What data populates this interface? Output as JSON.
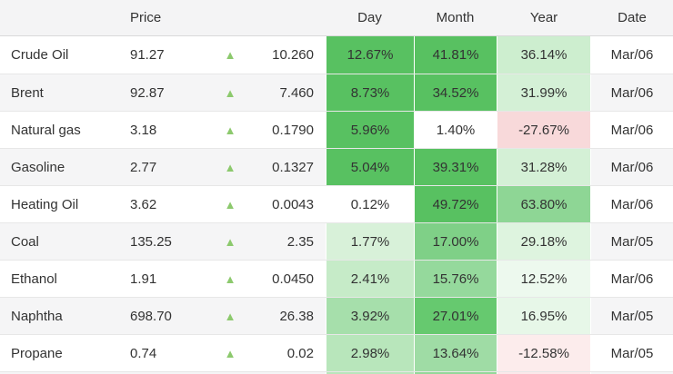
{
  "table": {
    "headers": {
      "name": "",
      "price": "Price",
      "day": "Day",
      "month": "Month",
      "year": "Year",
      "date": "Date"
    },
    "rows": [
      {
        "name": "Crude Oil",
        "price": "91.27",
        "direction": "up",
        "change": "10.260",
        "day": {
          "text": "12.67%",
          "bg": "#58c161"
        },
        "month": {
          "text": "41.81%",
          "bg": "#58c161"
        },
        "year": {
          "text": "36.14%",
          "bg": "#cdeecf"
        },
        "date": "Mar/06"
      },
      {
        "name": "Brent",
        "price": "92.87",
        "direction": "up",
        "change": "7.460",
        "day": {
          "text": "8.73%",
          "bg": "#58c161"
        },
        "month": {
          "text": "34.52%",
          "bg": "#58c161"
        },
        "year": {
          "text": "31.99%",
          "bg": "#d4f0d6"
        },
        "date": "Mar/06"
      },
      {
        "name": "Natural gas",
        "price": "3.18",
        "direction": "up",
        "change": "0.1790",
        "day": {
          "text": "5.96%",
          "bg": "#58c161"
        },
        "month": {
          "text": "1.40%",
          "bg": "#ffffff"
        },
        "year": {
          "text": "-27.67%",
          "bg": "#f8d9da"
        },
        "date": "Mar/06"
      },
      {
        "name": "Gasoline",
        "price": "2.77",
        "direction": "up",
        "change": "0.1327",
        "day": {
          "text": "5.04%",
          "bg": "#58c161"
        },
        "month": {
          "text": "39.31%",
          "bg": "#58c161"
        },
        "year": {
          "text": "31.28%",
          "bg": "#d4f0d6"
        },
        "date": "Mar/06"
      },
      {
        "name": "Heating Oil",
        "price": "3.62",
        "direction": "up",
        "change": "0.0043",
        "day": {
          "text": "0.12%",
          "bg": "#ffffff"
        },
        "month": {
          "text": "49.72%",
          "bg": "#58c161"
        },
        "year": {
          "text": "63.80%",
          "bg": "#8ed695"
        },
        "date": "Mar/06"
      },
      {
        "name": "Coal",
        "price": "135.25",
        "direction": "up",
        "change": "2.35",
        "day": {
          "text": "1.77%",
          "bg": "#d8f1d9"
        },
        "month": {
          "text": "17.00%",
          "bg": "#7fd087"
        },
        "year": {
          "text": "29.18%",
          "bg": "#def4df"
        },
        "date": "Mar/05"
      },
      {
        "name": "Ethanol",
        "price": "1.91",
        "direction": "up",
        "change": "0.0450",
        "day": {
          "text": "2.41%",
          "bg": "#c6ebc8"
        },
        "month": {
          "text": "15.76%",
          "bg": "#95d99c"
        },
        "year": {
          "text": "12.52%",
          "bg": "#edf9ee"
        },
        "date": "Mar/06"
      },
      {
        "name": "Naphtha",
        "price": "698.70",
        "direction": "up",
        "change": "26.38",
        "day": {
          "text": "3.92%",
          "bg": "#a6dfab"
        },
        "month": {
          "text": "27.01%",
          "bg": "#66c96f"
        },
        "year": {
          "text": "16.95%",
          "bg": "#e7f7e8"
        },
        "date": "Mar/05"
      },
      {
        "name": "Propane",
        "price": "0.74",
        "direction": "up",
        "change": "0.02",
        "day": {
          "text": "2.98%",
          "bg": "#b8e6bb"
        },
        "month": {
          "text": "13.64%",
          "bg": "#9fdca5"
        },
        "year": {
          "text": "-12.58%",
          "bg": "#fcecec"
        },
        "date": "Mar/05"
      }
    ],
    "partial_next_row": {
      "day_bg": "#b9e6bb",
      "month_bg": "#93d899",
      "year_bg": "#fbe9ea"
    }
  },
  "icons": {
    "up_arrow": "▲"
  },
  "colors": {
    "positive_strong": "#58c161",
    "negative_light": "#f8d9da",
    "arrow_up": "#8cc96d",
    "header_bg": "#f4f4f5",
    "row_stripe": "#f5f5f6",
    "row_border": "#e7e7e7",
    "text": "#333333"
  }
}
